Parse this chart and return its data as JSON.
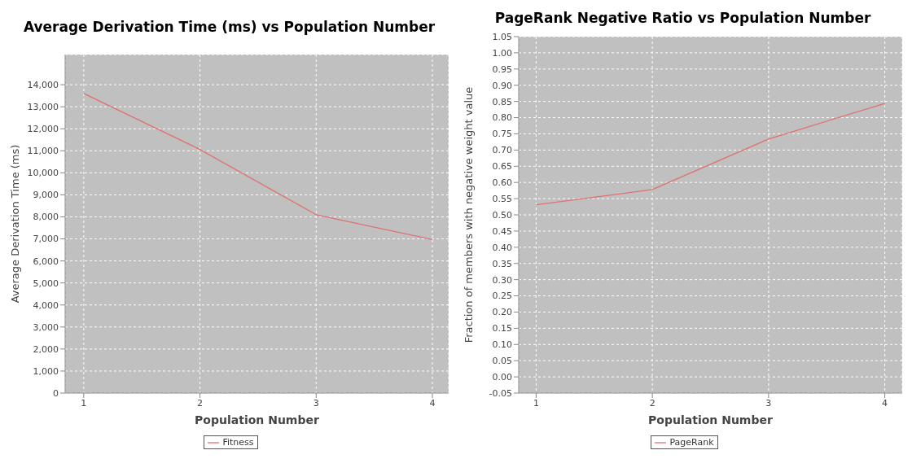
{
  "chart_data": [
    {
      "type": "line",
      "title": "Average Derivation Time (ms) vs Population Number",
      "xlabel": "Population Number",
      "ylabel": "Average Derivation Time (ms)",
      "x": [
        1,
        2,
        3,
        4
      ],
      "series": [
        {
          "name": "Fitness",
          "color": "#e07070",
          "values": [
            13600,
            11060,
            8100,
            6970
          ]
        }
      ],
      "xlim": [
        0.84,
        4.14
      ],
      "xticks": [
        1,
        2,
        3,
        4
      ],
      "ylim": [
        0,
        15370
      ],
      "yticks": [
        0,
        {
          "value": 1000,
          "label": "1,000"
        },
        {
          "value": 2000,
          "label": "2,000"
        },
        {
          "value": 3000,
          "label": "3,000"
        },
        {
          "value": 4000,
          "label": "4,000"
        },
        {
          "value": 5000,
          "label": "5,000"
        },
        {
          "value": 6000,
          "label": "6,000"
        },
        {
          "value": 7000,
          "label": "7,000"
        },
        {
          "value": 8000,
          "label": "8,000"
        },
        {
          "value": 9000,
          "label": "9,000"
        },
        {
          "value": 10000,
          "label": "10,000"
        },
        {
          "value": 11000,
          "label": "11,000"
        },
        {
          "value": 12000,
          "label": "12,000"
        },
        {
          "value": 13000,
          "label": "13,000"
        },
        {
          "value": 14000,
          "label": "14,000"
        }
      ],
      "grid": true,
      "legend": "bottom",
      "marker": "none",
      "line_style": "solid"
    },
    {
      "type": "line",
      "title": "PageRank Negative Ratio vs Population Number",
      "xlabel": "Population Number",
      "ylabel": "Fraction of members with negative weight value",
      "x": [
        1,
        2,
        3,
        4
      ],
      "series": [
        {
          "name": "PageRank",
          "color": "#e07070",
          "values": [
            0.531,
            0.578,
            0.734,
            0.844
          ]
        }
      ],
      "xlim": [
        0.85,
        4.15
      ],
      "xticks": [
        1,
        2,
        3,
        4
      ],
      "ylim": [
        -0.05,
        1.05
      ],
      "yticks": [
        {
          "value": -0.05,
          "label": "-0.05"
        },
        {
          "value": 0,
          "label": "0.00"
        },
        {
          "value": 0.05,
          "label": "0.05"
        },
        {
          "value": 0.1,
          "label": "0.10"
        },
        {
          "value": 0.15,
          "label": "0.15"
        },
        {
          "value": 0.2,
          "label": "0.20"
        },
        {
          "value": 0.25,
          "label": "0.25"
        },
        {
          "value": 0.3,
          "label": "0.30"
        },
        {
          "value": 0.35,
          "label": "0.35"
        },
        {
          "value": 0.4,
          "label": "0.40"
        },
        {
          "value": 0.45,
          "label": "0.45"
        },
        {
          "value": 0.5,
          "label": "0.50"
        },
        {
          "value": 0.55,
          "label": "0.55"
        },
        {
          "value": 0.6,
          "label": "0.60"
        },
        {
          "value": 0.65,
          "label": "0.65"
        },
        {
          "value": 0.7,
          "label": "0.70"
        },
        {
          "value": 0.75,
          "label": "0.75"
        },
        {
          "value": 0.8,
          "label": "0.80"
        },
        {
          "value": 0.85,
          "label": "0.85"
        },
        {
          "value": 0.9,
          "label": "0.90"
        },
        {
          "value": 0.95,
          "label": "0.95"
        },
        {
          "value": 1,
          "label": "1.00"
        },
        {
          "value": 1.05,
          "label": "1.05"
        }
      ],
      "grid": true,
      "legend": "bottom",
      "marker": "none",
      "line_style": "solid"
    }
  ]
}
